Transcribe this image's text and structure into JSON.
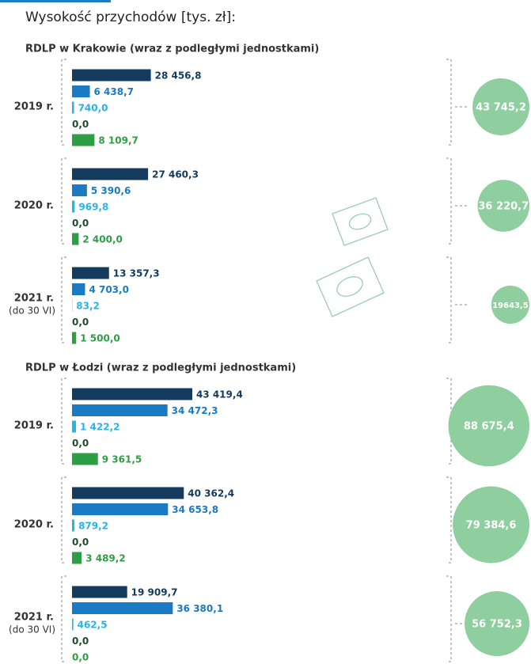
{
  "chart_data": {
    "type": "bar",
    "title": "Wysokość przychodów [tys. zł]:",
    "colors": [
      "#143a5e",
      "#1a7bc4",
      "#27b5e6",
      "#1e4d2b",
      "#2e9e45"
    ],
    "total_color": "#8fcf9f",
    "sections": [
      {
        "title": "RDLP w Krakowie (wraz z podległymi jednostkami)",
        "groups": [
          {
            "label": "2019 r.",
            "values": [
              28456.8,
              6438.7,
              740.0,
              0.0,
              8109.7
            ],
            "value_labels": [
              "28 456,8",
              "6 438,7",
              "740,0",
              "0,0",
              "8 109,7"
            ],
            "total": 43745.2,
            "total_label": "43 745,2"
          },
          {
            "label": "2020 r.",
            "values": [
              27460.3,
              5390.6,
              969.8,
              0.0,
              2400.0
            ],
            "value_labels": [
              "27 460,3",
              "5 390,6",
              "969,8",
              "0,0",
              "2 400,0"
            ],
            "total": 36220.7,
            "total_label": "36 220,7"
          },
          {
            "label": "2021 r.",
            "note": "(do 30 VI)",
            "values": [
              13357.3,
              4703.0,
              83.2,
              0.0,
              1500.0
            ],
            "value_labels": [
              "13 357,3",
              "4 703,0",
              "83,2",
              "0,0",
              "1 500,0"
            ],
            "total": 19643.5,
            "total_label": "19643,5"
          }
        ]
      },
      {
        "title": "RDLP w Łodzi (wraz z podległymi jednostkami)",
        "groups": [
          {
            "label": "2019 r.",
            "values": [
              43419.4,
              34472.3,
              1422.2,
              0.0,
              9361.5
            ],
            "value_labels": [
              "43 419,4",
              "34 472,3",
              "1 422,2",
              "0,0",
              "9 361,5"
            ],
            "total": 88675.4,
            "total_label": "88 675,4"
          },
          {
            "label": "2020 r.",
            "values": [
              40362.4,
              34653.8,
              879.2,
              0.0,
              3489.2
            ],
            "value_labels": [
              "40 362,4",
              "34 653,8",
              "879,2",
              "0,0",
              "3 489,2"
            ],
            "total": 79384.6,
            "total_label": "79 384,6"
          },
          {
            "label": "2021 r.",
            "note": "(do 30 VI)",
            "values": [
              19909.7,
              36380.1,
              462.5,
              0.0,
              0.0
            ],
            "value_labels": [
              "19 909,7",
              "36 380,1",
              "462,5",
              "0,0",
              "0,0"
            ],
            "total": 56752.3,
            "total_label": "56 752,3"
          }
        ]
      }
    ]
  }
}
